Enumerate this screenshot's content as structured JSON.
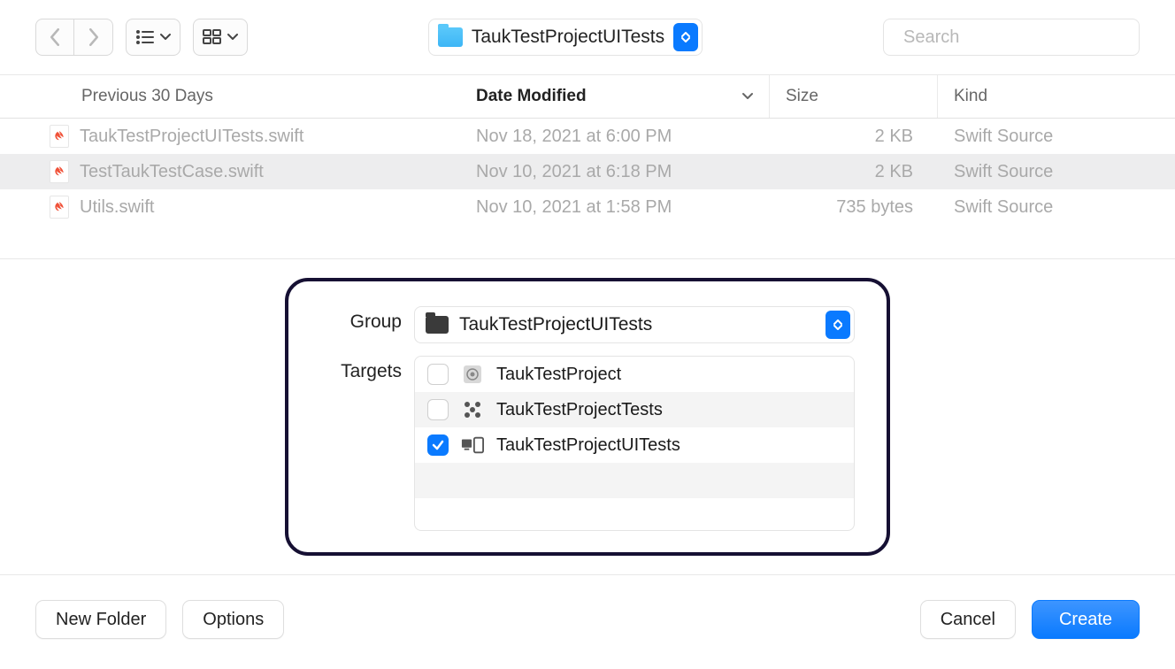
{
  "toolbar": {
    "path_label": "TaukTestProjectUITests",
    "search_placeholder": "Search"
  },
  "columns": {
    "name": "Previous 30 Days",
    "date": "Date Modified",
    "size": "Size",
    "kind": "Kind"
  },
  "files": [
    {
      "name": "TaukTestProjectUITests.swift",
      "date": "Nov 18, 2021 at 6:00 PM",
      "size": "2 KB",
      "kind": "Swift Source",
      "selected": false
    },
    {
      "name": "TestTaukTestCase.swift",
      "date": "Nov 10, 2021 at 6:18 PM",
      "size": "2 KB",
      "kind": "Swift Source",
      "selected": true
    },
    {
      "name": "Utils.swift",
      "date": "Nov 10, 2021 at 1:58 PM",
      "size": "735 bytes",
      "kind": "Swift Source",
      "selected": false
    }
  ],
  "group_panel": {
    "group_label": "Group",
    "group_value": "TaukTestProjectUITests",
    "targets_label": "Targets",
    "targets": [
      {
        "name": "TaukTestProject",
        "checked": false,
        "icon": "app"
      },
      {
        "name": "TaukTestProjectTests",
        "checked": false,
        "icon": "unit"
      },
      {
        "name": "TaukTestProjectUITests",
        "checked": true,
        "icon": "ui"
      }
    ]
  },
  "footer": {
    "new_folder": "New Folder",
    "options": "Options",
    "cancel": "Cancel",
    "create": "Create"
  },
  "colors": {
    "accent": "#0a7aff",
    "highlight_border": "#161033",
    "disabled_text": "#a9a9a9",
    "row_alt": "#f4f4f4"
  }
}
